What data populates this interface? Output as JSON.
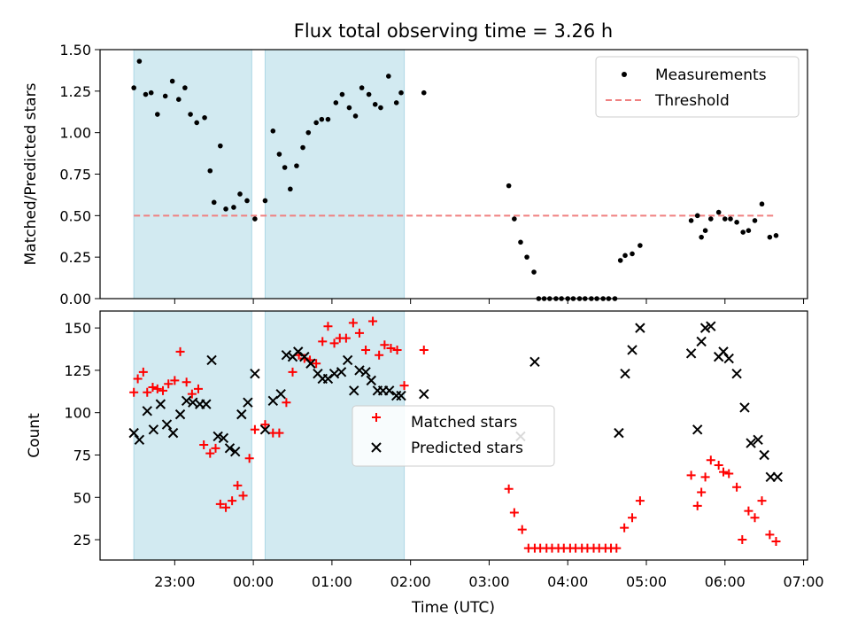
{
  "figure": {
    "title": "Flux total observing time = 3.26 h",
    "xlabel": "Time (UTC)"
  },
  "chart_data": [
    {
      "type": "scatter",
      "panel": "top",
      "ylabel": "Matched/Predicted stars",
      "x_units": "hours relative to 00:00 UTC",
      "xlim": [
        -1.95,
        7.05
      ],
      "ylim": [
        0.0,
        1.5
      ],
      "yticks": [
        0.0,
        0.25,
        0.5,
        0.75,
        1.0,
        1.25,
        1.5
      ],
      "ytick_labels": [
        "0.00",
        "0.25",
        "0.50",
        "0.75",
        "1.00",
        "1.25",
        "1.50"
      ],
      "xticks": [
        -1,
        0,
        1,
        2,
        3,
        4,
        5,
        6,
        7
      ],
      "xtick_labels": [
        "23:00",
        "00:00",
        "01:00",
        "02:00",
        "03:00",
        "04:00",
        "05:00",
        "06:00",
        "07:00"
      ],
      "shaded_intervals": [
        [
          -1.52,
          -0.02
        ],
        [
          0.15,
          1.92
        ]
      ],
      "shade_color": "#add8e6",
      "legend": {
        "placement": "top-right",
        "entries": [
          "Measurements",
          "Threshold"
        ]
      },
      "threshold": {
        "name": "Threshold",
        "value": 0.5,
        "x_range": [
          -1.52,
          6.62
        ],
        "color": "#f08080"
      },
      "series": [
        {
          "name": "Measurements",
          "color": "#000000",
          "x": [
            -1.52,
            -1.45,
            -1.37,
            -1.3,
            -1.22,
            -1.12,
            -1.03,
            -0.95,
            -0.87,
            -0.8,
            -0.72,
            -0.62,
            -0.55,
            -0.5,
            -0.42,
            -0.35,
            -0.25,
            -0.17,
            -0.08,
            0.02,
            0.15,
            0.25,
            0.33,
            0.4,
            0.47,
            0.55,
            0.63,
            0.7,
            0.8,
            0.87,
            0.95,
            1.05,
            1.13,
            1.22,
            1.3,
            1.38,
            1.47,
            1.55,
            1.62,
            1.72,
            1.82,
            1.88,
            2.17,
            3.25,
            3.32,
            3.4,
            3.48,
            3.57,
            3.63,
            3.7,
            3.77,
            3.85,
            3.92,
            4.0,
            4.07,
            4.15,
            4.22,
            4.3,
            4.37,
            4.45,
            4.52,
            4.6,
            4.67,
            4.73,
            4.82,
            4.92,
            5.57,
            5.65,
            5.7,
            5.75,
            5.82,
            5.92,
            6.0,
            6.07,
            6.15,
            6.23,
            6.3,
            6.38,
            6.47,
            6.57,
            6.65
          ],
          "y": [
            1.27,
            1.43,
            1.23,
            1.24,
            1.11,
            1.22,
            1.31,
            1.2,
            1.27,
            1.11,
            1.06,
            1.09,
            0.77,
            0.58,
            0.92,
            0.54,
            0.55,
            0.63,
            0.59,
            0.48,
            0.59,
            1.01,
            0.87,
            0.79,
            0.66,
            0.8,
            0.91,
            1.0,
            1.06,
            1.08,
            1.08,
            1.18,
            1.23,
            1.15,
            1.1,
            1.27,
            1.23,
            1.17,
            1.15,
            1.34,
            1.18,
            1.24,
            1.24,
            0.68,
            0.48,
            0.34,
            0.25,
            0.16,
            0.0,
            0.0,
            0.0,
            0.0,
            0.0,
            0.0,
            0.0,
            0.0,
            0.0,
            0.0,
            0.0,
            0.0,
            0.0,
            0.0,
            0.23,
            0.26,
            0.27,
            0.32,
            0.47,
            0.5,
            0.37,
            0.41,
            0.48,
            0.52,
            0.48,
            0.48,
            0.46,
            0.4,
            0.41,
            0.47,
            0.57,
            0.37,
            0.38
          ]
        }
      ]
    },
    {
      "type": "scatter",
      "panel": "bottom",
      "ylabel": "Count",
      "x_units": "hours relative to 00:00 UTC",
      "xlim": [
        -1.95,
        7.05
      ],
      "ylim": [
        13,
        160
      ],
      "yticks": [
        25,
        50,
        75,
        100,
        125,
        150
      ],
      "ytick_labels": [
        "25",
        "50",
        "75",
        "100",
        "125",
        "150"
      ],
      "xticks": [
        -1,
        0,
        1,
        2,
        3,
        4,
        5,
        6,
        7
      ],
      "xtick_labels": [
        "23:00",
        "00:00",
        "01:00",
        "02:00",
        "03:00",
        "04:00",
        "05:00",
        "06:00",
        "07:00"
      ],
      "shaded_intervals": [
        [
          -1.52,
          -0.02
        ],
        [
          0.15,
          1.92
        ]
      ],
      "shade_color": "#add8e6",
      "legend": {
        "placement": "center",
        "entries": [
          "Matched stars",
          "Predicted stars"
        ]
      },
      "series": [
        {
          "name": "Matched stars",
          "marker": "plus",
          "color": "#ff0000",
          "x": [
            -1.52,
            -1.47,
            -1.4,
            -1.35,
            -1.28,
            -1.22,
            -1.15,
            -1.08,
            -1.0,
            -0.93,
            -0.85,
            -0.78,
            -0.7,
            -0.63,
            -0.55,
            -0.48,
            -0.42,
            -0.35,
            -0.27,
            -0.2,
            -0.13,
            -0.05,
            0.02,
            0.15,
            0.25,
            0.33,
            0.42,
            0.5,
            0.58,
            0.65,
            0.72,
            0.8,
            0.88,
            0.95,
            1.03,
            1.1,
            1.18,
            1.27,
            1.35,
            1.43,
            1.52,
            1.6,
            1.67,
            1.75,
            1.83,
            1.92,
            2.17,
            3.25,
            3.32,
            3.42,
            3.5,
            3.58,
            3.65,
            3.73,
            3.8,
            3.88,
            3.95,
            4.03,
            4.1,
            4.18,
            4.25,
            4.33,
            4.4,
            4.48,
            4.55,
            4.62,
            4.72,
            4.82,
            4.92,
            5.57,
            5.65,
            5.7,
            5.75,
            5.82,
            5.92,
            5.98,
            6.05,
            6.15,
            6.22,
            6.3,
            6.38,
            6.47,
            6.57,
            6.65
          ],
          "y": [
            112,
            120,
            124,
            112,
            115,
            114,
            113,
            117,
            119,
            136,
            118,
            111,
            114,
            81,
            76,
            79,
            46,
            44,
            48,
            57,
            51,
            73,
            90,
            93,
            88,
            88,
            106,
            124,
            134,
            132,
            131,
            129,
            142,
            151,
            141,
            144,
            144,
            153,
            147,
            137,
            154,
            134,
            140,
            138,
            137,
            116,
            137,
            55,
            41,
            31,
            20,
            20,
            20,
            20,
            20,
            20,
            20,
            20,
            20,
            20,
            20,
            20,
            20,
            20,
            20,
            20,
            32,
            38,
            48,
            63,
            45,
            53,
            62,
            72,
            69,
            65,
            64,
            56,
            25,
            42,
            38,
            48,
            28,
            24
          ]
        },
        {
          "name": "Predicted stars",
          "marker": "x",
          "color": "#000000",
          "x": [
            -1.52,
            -1.45,
            -1.35,
            -1.27,
            -1.18,
            -1.1,
            -1.02,
            -0.93,
            -0.85,
            -0.77,
            -0.68,
            -0.6,
            -0.53,
            -0.45,
            -0.38,
            -0.3,
            -0.23,
            -0.15,
            -0.07,
            0.02,
            0.15,
            0.25,
            0.35,
            0.42,
            0.5,
            0.57,
            0.65,
            0.73,
            0.82,
            0.88,
            0.95,
            1.03,
            1.12,
            1.2,
            1.28,
            1.35,
            1.43,
            1.5,
            1.58,
            1.65,
            1.73,
            1.82,
            1.88,
            2.17,
            3.4,
            3.58,
            4.65,
            4.73,
            4.82,
            4.92,
            5.57,
            5.65,
            5.7,
            5.75,
            5.82,
            5.92,
            5.98,
            6.05,
            6.15,
            6.25,
            6.33,
            6.42,
            6.5,
            6.58,
            6.67
          ],
          "y": [
            88,
            84,
            101,
            90,
            105,
            93,
            88,
            99,
            107,
            106,
            105,
            105,
            131,
            86,
            85,
            79,
            77,
            99,
            106,
            123,
            90,
            107,
            111,
            134,
            133,
            136,
            133,
            129,
            123,
            120,
            120,
            123,
            124,
            131,
            113,
            125,
            124,
            119,
            113,
            113,
            113,
            110,
            110,
            111,
            86,
            130,
            88,
            123,
            137,
            150,
            135,
            90,
            142,
            150,
            151,
            133,
            136,
            132,
            123,
            103,
            82,
            84,
            75,
            62,
            62
          ]
        }
      ]
    }
  ]
}
